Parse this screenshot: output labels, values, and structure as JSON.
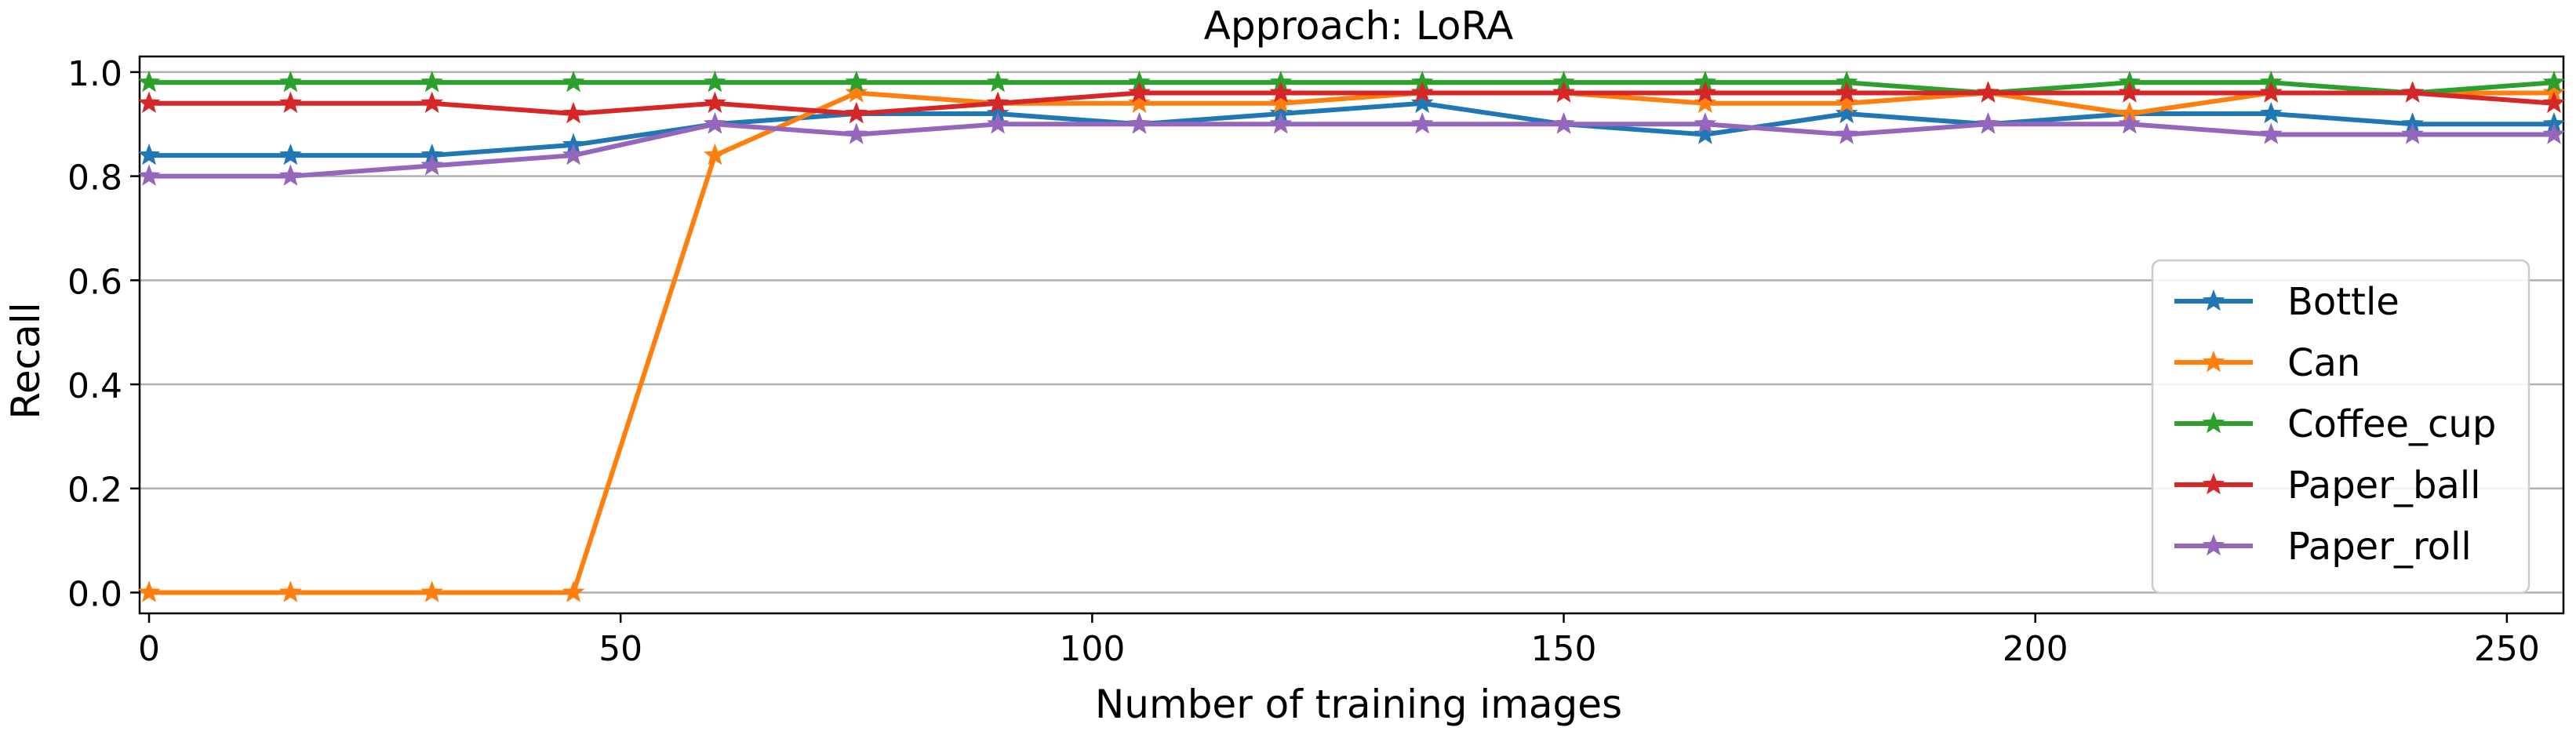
{
  "chart_data": {
    "type": "line",
    "title": "Approach: LoRA",
    "xlabel": "Number of training images",
    "ylabel": "Recall",
    "xlim": [
      -1,
      256
    ],
    "ylim": [
      -0.04,
      1.03
    ],
    "xticks": [
      0,
      50,
      100,
      150,
      200,
      250
    ],
    "yticks": [
      0.0,
      0.2,
      0.4,
      0.6,
      0.8,
      1.0
    ],
    "ytick_labels": [
      "0.0",
      "0.2",
      "0.4",
      "0.6",
      "0.8",
      "1.0"
    ],
    "grid": "horizontal",
    "legend_position": "center-right",
    "marker": "star",
    "x": [
      0,
      15,
      30,
      45,
      60,
      75,
      90,
      105,
      120,
      135,
      150,
      165,
      180,
      195,
      210,
      225,
      240,
      255
    ],
    "series": [
      {
        "name": "Bottle",
        "color": "#1f77b4",
        "values": [
          0.84,
          0.84,
          0.84,
          0.86,
          0.9,
          0.92,
          0.92,
          0.9,
          0.92,
          0.94,
          0.9,
          0.88,
          0.92,
          0.9,
          0.92,
          0.92,
          0.9,
          0.9
        ]
      },
      {
        "name": "Can",
        "color": "#ff7f0e",
        "values": [
          0.0,
          0.0,
          0.0,
          0.0,
          0.84,
          0.96,
          0.94,
          0.94,
          0.94,
          0.96,
          0.96,
          0.94,
          0.94,
          0.96,
          0.92,
          0.96,
          0.96,
          0.96
        ]
      },
      {
        "name": "Coffee_cup",
        "color": "#2ca02c",
        "values": [
          0.98,
          0.98,
          0.98,
          0.98,
          0.98,
          0.98,
          0.98,
          0.98,
          0.98,
          0.98,
          0.98,
          0.98,
          0.98,
          0.96,
          0.98,
          0.98,
          0.96,
          0.98
        ]
      },
      {
        "name": "Paper_ball",
        "color": "#d62728",
        "values": [
          0.94,
          0.94,
          0.94,
          0.92,
          0.94,
          0.92,
          0.94,
          0.96,
          0.96,
          0.96,
          0.96,
          0.96,
          0.96,
          0.96,
          0.96,
          0.96,
          0.96,
          0.94
        ]
      },
      {
        "name": "Paper_roll",
        "color": "#9467bd",
        "values": [
          0.8,
          0.8,
          0.82,
          0.84,
          0.9,
          0.88,
          0.9,
          0.9,
          0.9,
          0.9,
          0.9,
          0.9,
          0.88,
          0.9,
          0.9,
          0.88,
          0.88,
          0.88
        ]
      }
    ]
  }
}
